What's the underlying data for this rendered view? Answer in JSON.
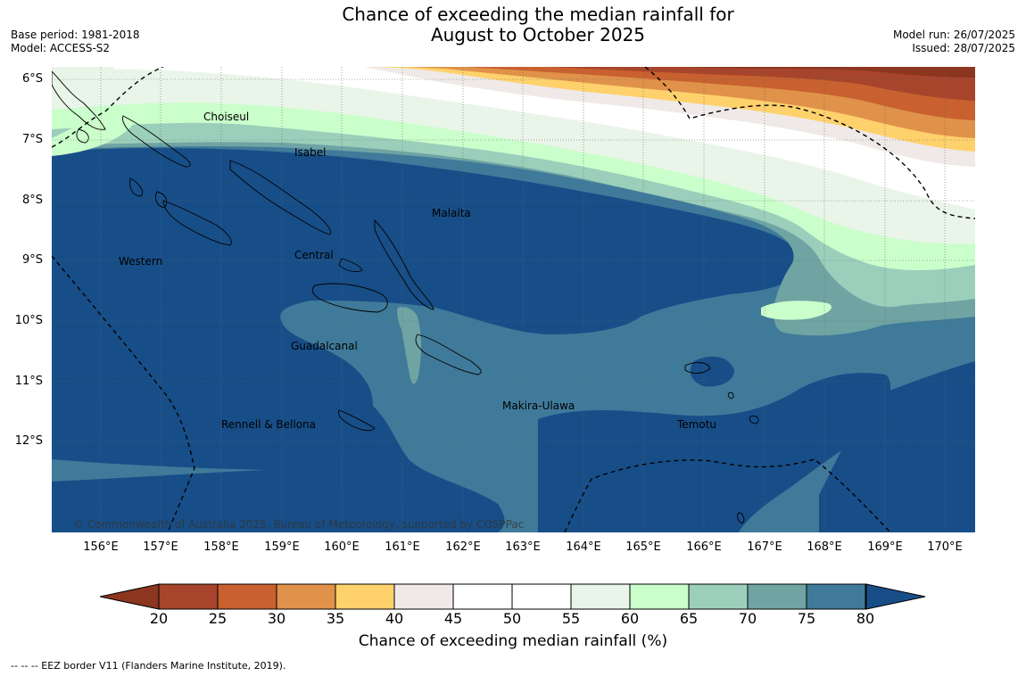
{
  "header": {
    "title_line1": "Chance of exceeding the median rainfall for",
    "title_line2": "August to October 2025",
    "base_period": "Base period: 1981-2018",
    "model": "Model: ACCESS-S2",
    "model_run": "Model run: 26/07/2025",
    "issued": "Issued: 28/07/2025"
  },
  "map": {
    "lat_labels": [
      "6°S",
      "7°S",
      "8°S",
      "9°S",
      "10°S",
      "11°S",
      "12°S"
    ],
    "lon_labels": [
      "156°E",
      "157°E",
      "158°E",
      "159°E",
      "160°E",
      "161°E",
      "162°E",
      "163°E",
      "164°E",
      "165°E",
      "166°E",
      "167°E",
      "168°E",
      "169°E",
      "170°E"
    ],
    "provinces": [
      "Choiseul",
      "Isabel",
      "Malaita",
      "Western",
      "Central",
      "Guadalcanal",
      "Makira-Ulawa",
      "Rennell & Bellona",
      "Temotu"
    ],
    "copyright": "© Commonwealth of Australia 2025, Bureau of Meteorology, supported by COSPPac",
    "colors": {
      "c20": "#a6452b",
      "c25": "#c8612f",
      "c30": "#e0924a",
      "c35": "#fed16c",
      "c40": "#efeae7",
      "c45": "#ffffff",
      "c50": "#ffffff",
      "c55": "#e9f5e8",
      "c60": "#cafecb",
      "c65": "#9bcfbb",
      "c70": "#6fa4a3",
      "c75": "#3f7a9a",
      "c80": "#174e88",
      "low_ext": "#8c3620"
    }
  },
  "colorbar": {
    "ticks": [
      "20",
      "25",
      "30",
      "35",
      "40",
      "45",
      "50",
      "55",
      "60",
      "65",
      "70",
      "75",
      "80"
    ],
    "label": "Chance of exceeding median rainfall (%)"
  },
  "footer": {
    "eez_note": "--  --  -- EEZ border V11 (Flanders Marine Institute, 2019)."
  }
}
